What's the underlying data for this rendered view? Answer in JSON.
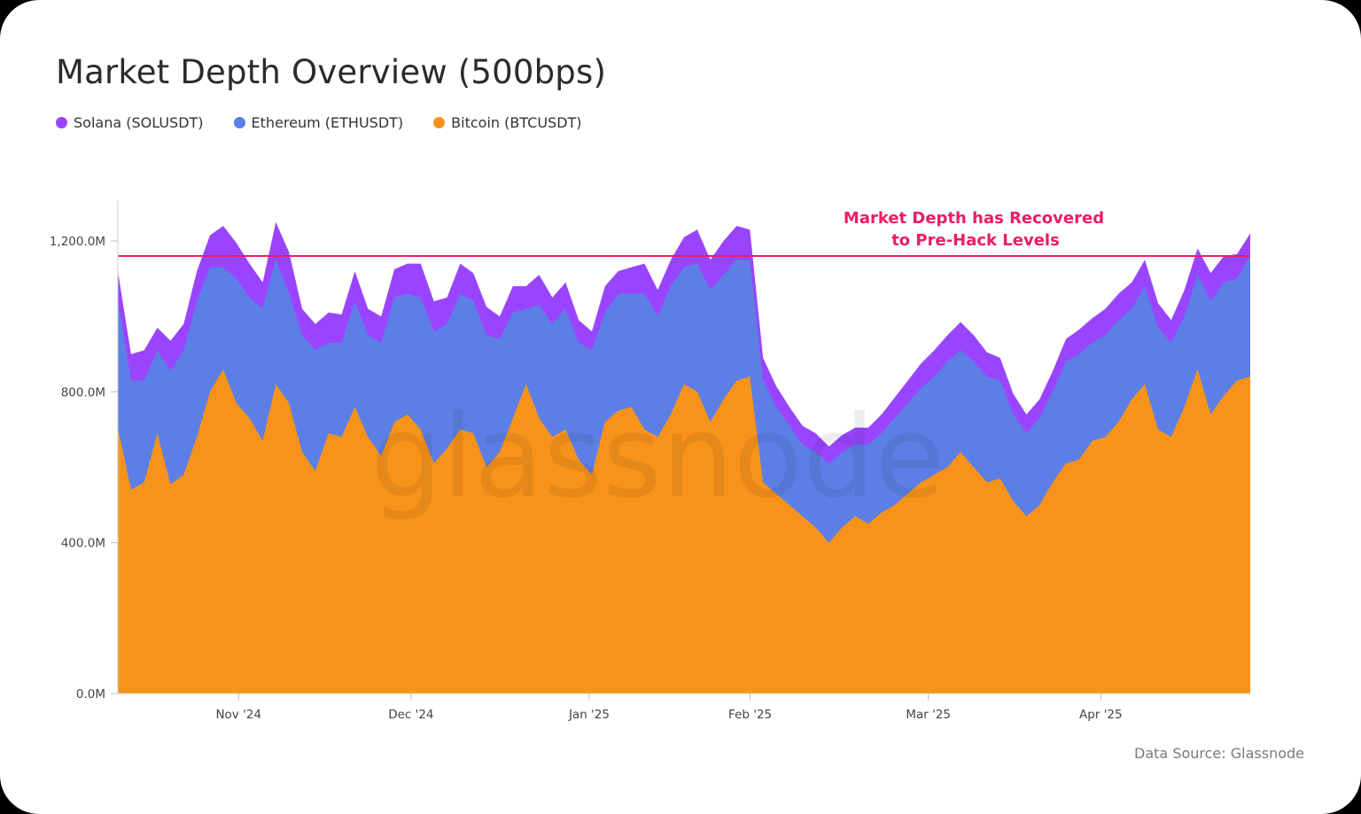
{
  "chart_data": {
    "type": "area",
    "stacked": true,
    "title": "Market Depth Overview (500bps)",
    "xlabel": "",
    "ylabel": "",
    "ylim": [
      0,
      1310
    ],
    "y_unit": "M",
    "y_ticks": [
      0,
      400,
      800,
      1200
    ],
    "y_tick_labels": [
      "0.0M",
      "400.0M",
      "800.0M",
      "1,200.0M"
    ],
    "x_range_days": [
      0,
      197
    ],
    "x_ticks": [
      {
        "label": "Nov '24",
        "day": 21
      },
      {
        "label": "Dec '24",
        "day": 51
      },
      {
        "label": "Jan '25",
        "day": 82
      },
      {
        "label": "Feb '25",
        "day": 110
      },
      {
        "label": "Mar '25",
        "day": 141
      },
      {
        "label": "Apr '25",
        "day": 171
      }
    ],
    "x_day_step": 3,
    "legend_position": "top-left",
    "grid": false,
    "series": [
      {
        "name": "Bitcoin (BTCUSDT)",
        "color": "#f7931a",
        "values": [
          705,
          540,
          560,
          690,
          555,
          580,
          680,
          800,
          860,
          770,
          730,
          670,
          820,
          770,
          640,
          590,
          690,
          680,
          760,
          680,
          630,
          720,
          740,
          700,
          610,
          650,
          700,
          690,
          600,
          640,
          730,
          820,
          730,
          680,
          700,
          620,
          580,
          720,
          750,
          760,
          700,
          680,
          740,
          820,
          800,
          720,
          780,
          830,
          840,
          560,
          530,
          500,
          470,
          440,
          400,
          440,
          470,
          450,
          480,
          500,
          530,
          560,
          580,
          600,
          640,
          600,
          560,
          570,
          510,
          470,
          500,
          560,
          610,
          620,
          670,
          680,
          720,
          780,
          820,
          700,
          680,
          760,
          860,
          740,
          790,
          830,
          840
        ]
      },
      {
        "name": "Ethereum (ETHUSDT)",
        "color": "#5c7fe6",
        "values": [
          340,
          290,
          270,
          220,
          300,
          330,
          360,
          330,
          270,
          330,
          320,
          350,
          330,
          290,
          310,
          320,
          240,
          250,
          280,
          270,
          300,
          330,
          320,
          350,
          350,
          330,
          360,
          350,
          350,
          300,
          280,
          200,
          300,
          300,
          320,
          310,
          330,
          290,
          310,
          300,
          360,
          320,
          340,
          310,
          340,
          350,
          330,
          320,
          310,
          270,
          230,
          210,
          190,
          200,
          210,
          200,
          190,
          210,
          210,
          230,
          240,
          250,
          260,
          280,
          270,
          280,
          280,
          260,
          230,
          220,
          230,
          240,
          270,
          280,
          260,
          270,
          270,
          240,
          260,
          270,
          250,
          240,
          250,
          300,
          300,
          270,
          320
        ]
      },
      {
        "name": "Solana (SOLUSDT)",
        "color": "#9945ff",
        "values": [
          75,
          70,
          80,
          60,
          80,
          70,
          80,
          85,
          110,
          95,
          90,
          70,
          100,
          110,
          70,
          70,
          80,
          75,
          80,
          70,
          70,
          75,
          80,
          90,
          80,
          70,
          80,
          75,
          75,
          60,
          70,
          60,
          80,
          70,
          70,
          60,
          50,
          70,
          60,
          70,
          80,
          70,
          70,
          80,
          90,
          80,
          90,
          90,
          80,
          60,
          55,
          50,
          50,
          50,
          45,
          45,
          45,
          45,
          50,
          55,
          60,
          65,
          70,
          70,
          75,
          70,
          65,
          60,
          55,
          50,
          50,
          55,
          60,
          65,
          65,
          70,
          70,
          70,
          70,
          65,
          60,
          70,
          70,
          75,
          70,
          65,
          60
        ]
      }
    ],
    "reference_line": {
      "value": 1160,
      "color": "#ec1c63"
    },
    "annotation": {
      "line1": "Market Depth has Recovered",
      "line2": "to Pre-Hack Levels"
    },
    "watermark": "glassnode"
  },
  "page": {
    "title": "Market Depth Overview (500bps)",
    "legend": [
      {
        "label": "Solana (SOLUSDT)",
        "color": "#9945ff"
      },
      {
        "label": "Ethereum (ETHUSDT)",
        "color": "#5c7fe6"
      },
      {
        "label": "Bitcoin (BTCUSDT)",
        "color": "#f7931a"
      }
    ],
    "source": "Data Source: Glassnode"
  }
}
